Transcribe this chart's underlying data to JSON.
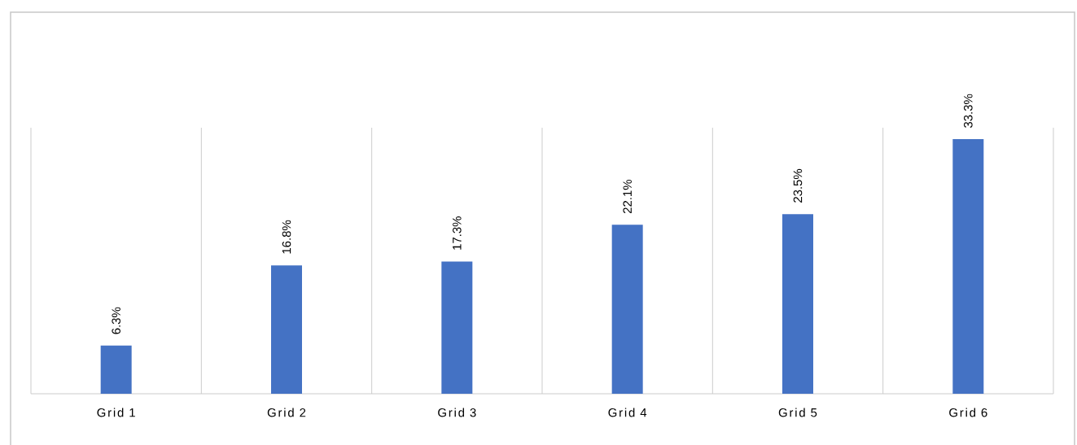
{
  "chart_data": {
    "type": "bar",
    "categories": [
      "Grid 1",
      "Grid 2",
      "Grid 3",
      "Grid 4",
      "Grid 5",
      "Grid 6"
    ],
    "values": [
      6.3,
      16.8,
      17.3,
      22.1,
      23.5,
      33.3
    ],
    "value_labels": [
      "6.3%",
      "16.8%",
      "17.3%",
      "22.1%",
      "23.5%",
      "33.3%"
    ],
    "color": "#4472c4",
    "grid": "x"
  }
}
